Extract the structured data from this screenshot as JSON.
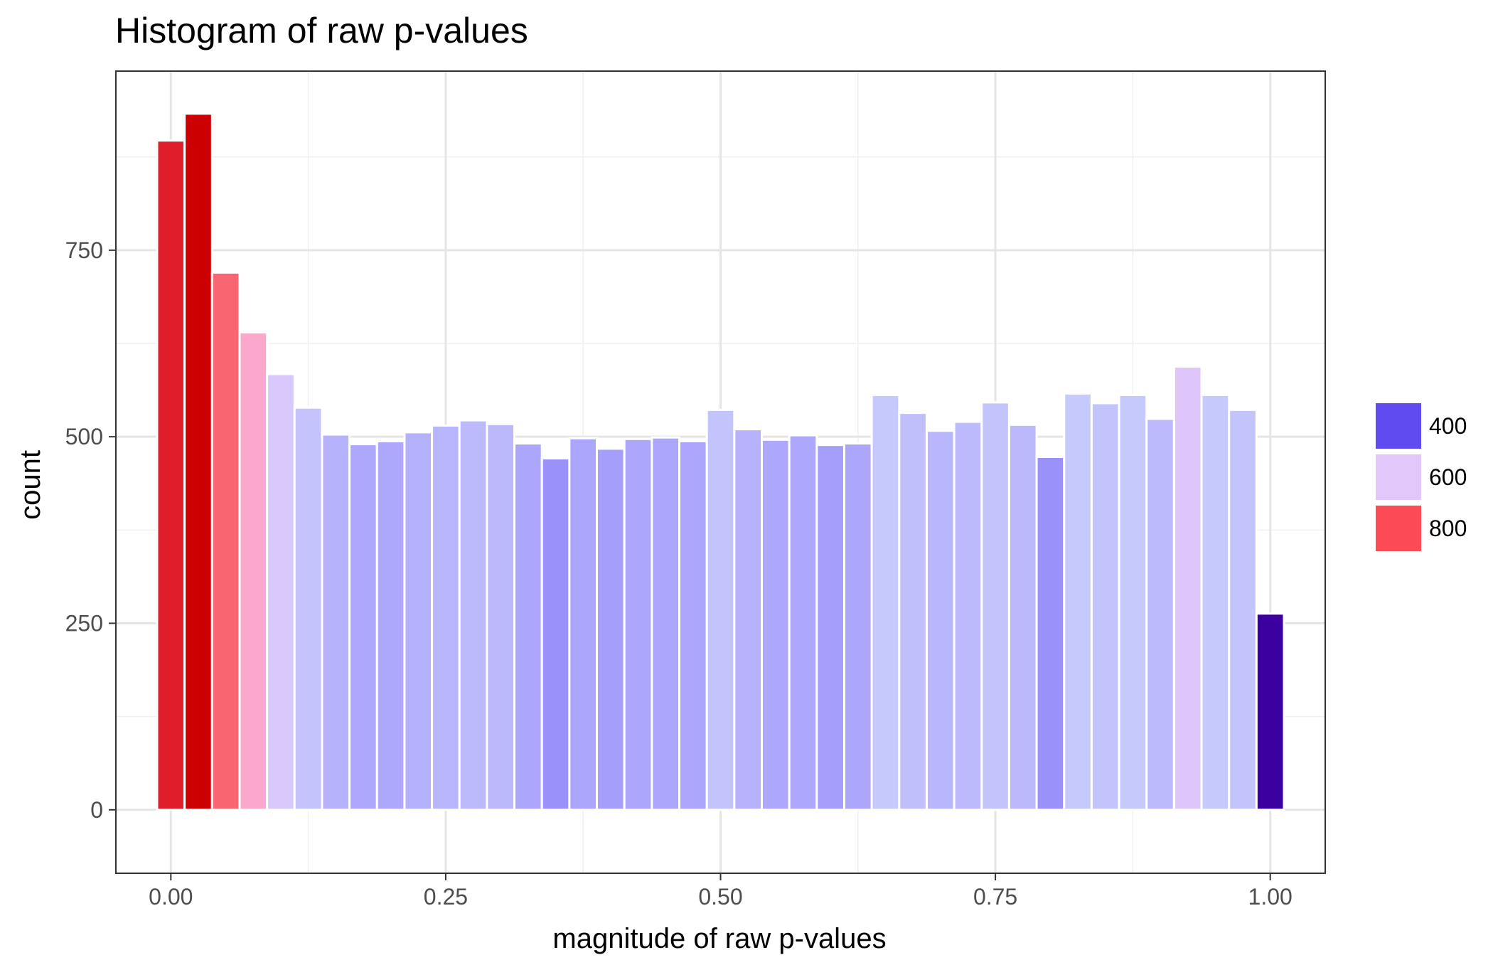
{
  "chart_data": {
    "type": "bar",
    "title": "Histogram of raw p-values",
    "xlabel": "magnitude of raw p-values",
    "ylabel": "count",
    "xlim": [
      -0.05,
      1.05
    ],
    "ylim": [
      -85,
      990
    ],
    "x_ticks": [
      {
        "value": 0.0,
        "label": "0.00"
      },
      {
        "value": 0.25,
        "label": "0.25"
      },
      {
        "value": 0.5,
        "label": "0.50"
      },
      {
        "value": 0.75,
        "label": "0.75"
      },
      {
        "value": 1.0,
        "label": "1.00"
      }
    ],
    "y_ticks": [
      {
        "value": 0,
        "label": "0"
      },
      {
        "value": 250,
        "label": "250"
      },
      {
        "value": 500,
        "label": "500"
      },
      {
        "value": 750,
        "label": "750"
      }
    ],
    "grid": true,
    "bin_width": 0.025,
    "x": [
      0.0,
      0.025,
      0.05,
      0.075,
      0.1,
      0.125,
      0.15,
      0.175,
      0.2,
      0.225,
      0.25,
      0.275,
      0.3,
      0.325,
      0.35,
      0.375,
      0.4,
      0.425,
      0.45,
      0.475,
      0.5,
      0.525,
      0.55,
      0.575,
      0.6,
      0.625,
      0.65,
      0.675,
      0.7,
      0.725,
      0.75,
      0.775,
      0.8,
      0.825,
      0.85,
      0.875,
      0.9,
      0.925,
      0.95,
      0.975,
      1.0
    ],
    "values": [
      897,
      933,
      720,
      640,
      584,
      539,
      503,
      490,
      494,
      506,
      515,
      522,
      517,
      491,
      471,
      498,
      484,
      497,
      499,
      494,
      536,
      510,
      496,
      502,
      489,
      491,
      556,
      532,
      508,
      520,
      546,
      516,
      473,
      558,
      545,
      556,
      524,
      594,
      556,
      536,
      263
    ],
    "colors": [
      "#e01d2b",
      "#cc0000",
      "#f96570",
      "#fba8cc",
      "#d9c8fb",
      "#c4c4fc",
      "#b6b2fc",
      "#ada8fc",
      "#ada8fc",
      "#b4b1fc",
      "#b8b6fc",
      "#bcbafc",
      "#bbb9fc",
      "#aba6fc",
      "#9b91fb",
      "#aba6fc",
      "#a59ffb",
      "#aba6fc",
      "#aba6fc",
      "#aba6fc",
      "#c4c4fc",
      "#b6b2fc",
      "#ada8fc",
      "#ada8fc",
      "#a59ffb",
      "#aba6fc",
      "#c6c9fc",
      "#c0bffc",
      "#b8b6fc",
      "#bcbafc",
      "#c4c4fc",
      "#bbb9fc",
      "#9b91fb",
      "#c6c9fc",
      "#c4c4fc",
      "#c6c9fc",
      "#bcbafc",
      "#dfc6fa",
      "#c6c9fc",
      "#c4c4fc",
      "#3c00a0"
    ],
    "legend": {
      "position": "right",
      "items": [
        {
          "label": "400",
          "color": "#5f4bf0"
        },
        {
          "label": "600",
          "color": "#e2c8fa"
        },
        {
          "label": "800",
          "color": "#fc4b57"
        }
      ]
    }
  }
}
